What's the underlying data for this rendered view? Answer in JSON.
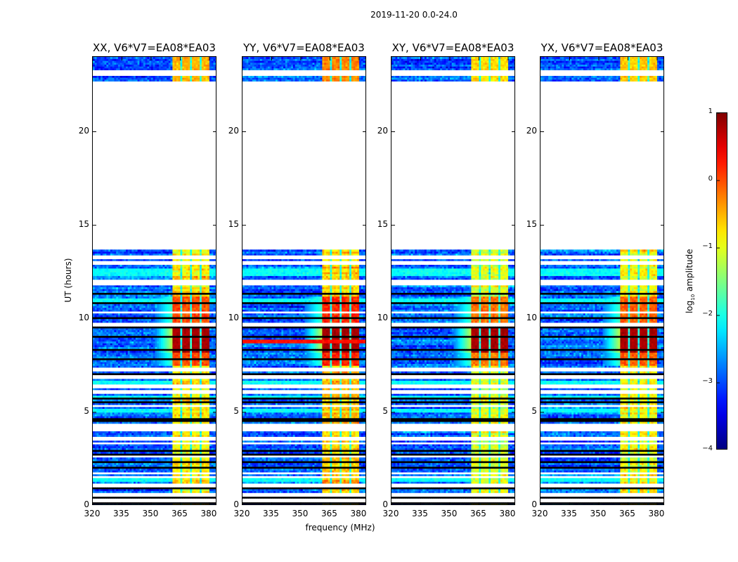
{
  "suptitle": "2019-11-20 0.0-24.0",
  "xlabel": "frequency (MHz)",
  "ylabel": "UT (hours)",
  "colorbar": {
    "label_main": "log",
    "label_sub": "10",
    "label_rest": " amplitude",
    "ticks": [
      "1",
      "0",
      "−1",
      "−2",
      "−3",
      "−4"
    ],
    "tick_values": [
      1,
      0,
      -1,
      -2,
      -3,
      -4
    ],
    "range": [
      -4,
      1
    ],
    "colormap": "jet"
  },
  "chart_data": {
    "type": "heatmap",
    "title": "2019-11-20 0.0-24.0",
    "xlabel": "frequency (MHz)",
    "ylabel": "UT (hours)",
    "zlabel": "log10 amplitude",
    "xlim": [
      320,
      384
    ],
    "ylim": [
      0,
      24
    ],
    "zlim": [
      -4,
      1
    ],
    "xticks": [
      "320",
      "335",
      "350",
      "365",
      "380"
    ],
    "xtick_values": [
      320,
      335,
      350,
      365,
      380
    ],
    "yticks": [
      "0",
      "5",
      "10",
      "15",
      "20"
    ],
    "ytick_values": [
      0,
      5,
      10,
      15,
      20
    ],
    "panels": [
      {
        "title": "XX, V6*V7=EA08*EA03",
        "band_level": -0.8,
        "red_line": false
      },
      {
        "title": "YY, V6*V7=EA08*EA03",
        "band_level": -0.6,
        "red_line": true
      },
      {
        "title": "XY, V6*V7=EA08*EA03",
        "band_level": -1.0,
        "red_line": false
      },
      {
        "title": "YX, V6*V7=EA08*EA03",
        "band_level": -0.9,
        "red_line": false
      }
    ],
    "data_time_ranges": [
      [
        0,
        13.7
      ],
      [
        22.7,
        24
      ]
    ],
    "background_level": -2.9,
    "band_range_mhz": [
      361,
      380
    ],
    "channel_gaps_mhz": [
      365.7,
      370.7,
      375.7
    ],
    "bright_time_range": [
      7.5,
      11.2
    ],
    "peak_time_range": [
      8.2,
      9.6
    ],
    "peak_level": 0.8,
    "red_line_time": 8.8,
    "cyan_rows_hours": [
      12.4,
      12.6,
      11.0,
      6.6,
      5.8,
      5.1,
      1.4
    ],
    "flagged_rows_hours": [
      0.3,
      0.6,
      1.1,
      1.55,
      1.75,
      2.65,
      3.35,
      3.6,
      4.1,
      4.2,
      4.3,
      5.35,
      6.1,
      6.4,
      6.9,
      7.3,
      9.7,
      10.35,
      11.9,
      12.05,
      13.0,
      13.3,
      23.1,
      23.25
    ],
    "dark_rows_hours": [
      0.2,
      0.5,
      0.9,
      2.1,
      2.4,
      2.8,
      3.0,
      4.6,
      5.5,
      5.7,
      7.05,
      7.8,
      8.3,
      9.0,
      9.5,
      10.0,
      10.8,
      11.35,
      12.9
    ]
  }
}
